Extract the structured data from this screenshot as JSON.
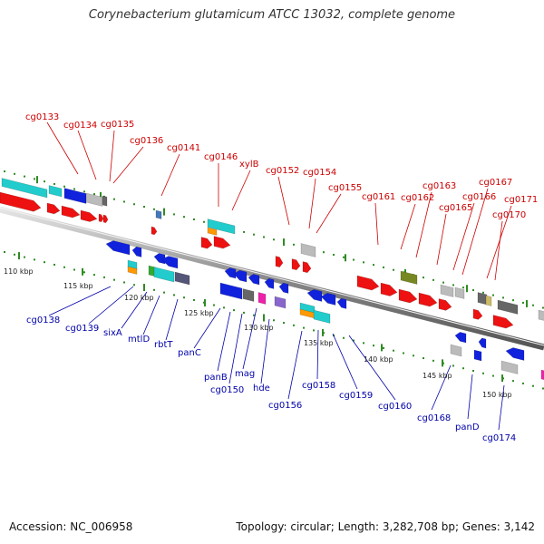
{
  "title": "Corynebacterium glutamicum ATCC 13032, complete genome",
  "footer": {
    "accession": "Accession: NC_006958",
    "summary": "Topology: circular; Length: 3,282,708 bp; Genes: 3,142"
  },
  "colors": {
    "forward_label": "#cc0000",
    "reverse_label": "#0000aa",
    "backbone": "#888888",
    "tick_dot": "#2e8b22"
  },
  "scale_ticks": [
    "110 kbp",
    "115 kbp",
    "120 kbp",
    "125 kbp",
    "130 kbp",
    "135 kbp",
    "140 kbp",
    "145 kbp",
    "150 kbp"
  ],
  "forward_genes": [
    "cg0133",
    "cg0134",
    "cg0135",
    "cg0136",
    "cg0141",
    "cg0146",
    "xylB",
    "cg0152",
    "cg0154",
    "cg0155",
    "cg0161",
    "cg0162",
    "cg0163",
    "cg0165",
    "cg0166",
    "cg0167",
    "cg0171",
    "cg0170"
  ],
  "reverse_genes": [
    "cg0138",
    "cg0139",
    "sixA",
    "mtlD",
    "rbtT",
    "panC",
    "panB",
    "cg0150",
    "mag",
    "hde",
    "cg0156",
    "cg0158",
    "cg0159",
    "cg0160",
    "cg0168",
    "panD",
    "cg0174"
  ]
}
